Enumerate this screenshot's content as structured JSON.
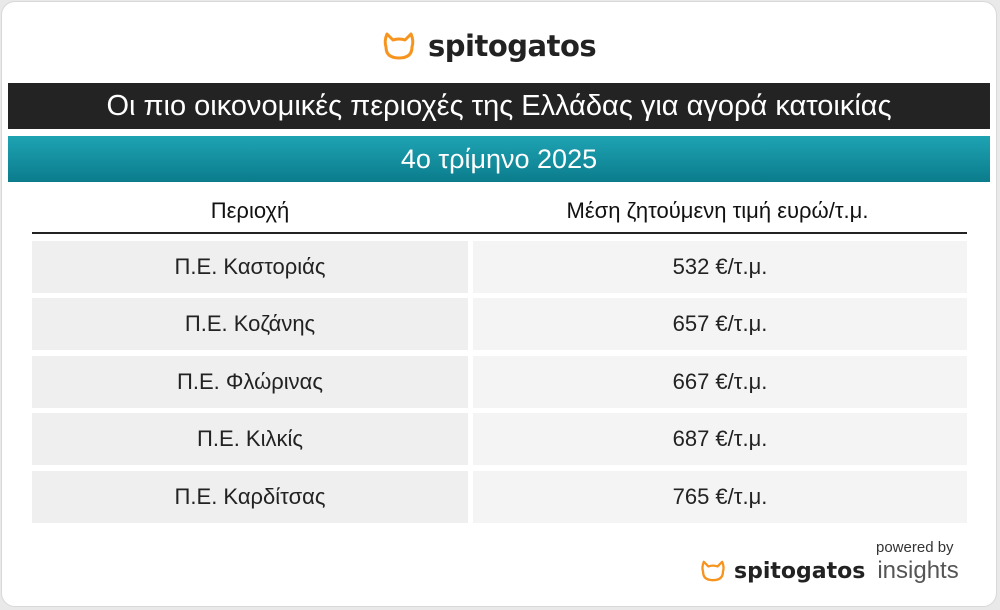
{
  "brand": {
    "name": "spitogatos",
    "accent": "#f7941d"
  },
  "title": "Οι πιο οικονομικές περιοχές της Ελλάδας για αγορά κατοικίας",
  "subtitle": "4ο τρίμηνο 2025",
  "chart_data": {
    "type": "table",
    "columns": [
      "Περιοχή",
      "Μέση ζητούμενη τιμή ευρώ/τ.μ."
    ],
    "rows": [
      {
        "region": "Π.Ε. Καστοριάς",
        "price": "532 €/τ.μ."
      },
      {
        "region": "Π.Ε. Κοζάνης",
        "price": "657 €/τ.μ."
      },
      {
        "region": "Π.Ε. Φλώρινας",
        "price": "667 €/τ.μ."
      },
      {
        "region": "Π.Ε. Κιλκίς",
        "price": "687 €/τ.μ."
      },
      {
        "region": "Π.Ε. Καρδίτσας",
        "price": "765 €/τ.μ."
      }
    ]
  },
  "footer": {
    "powered_by": "powered by",
    "brand": "spitogatos",
    "product": "insights"
  }
}
